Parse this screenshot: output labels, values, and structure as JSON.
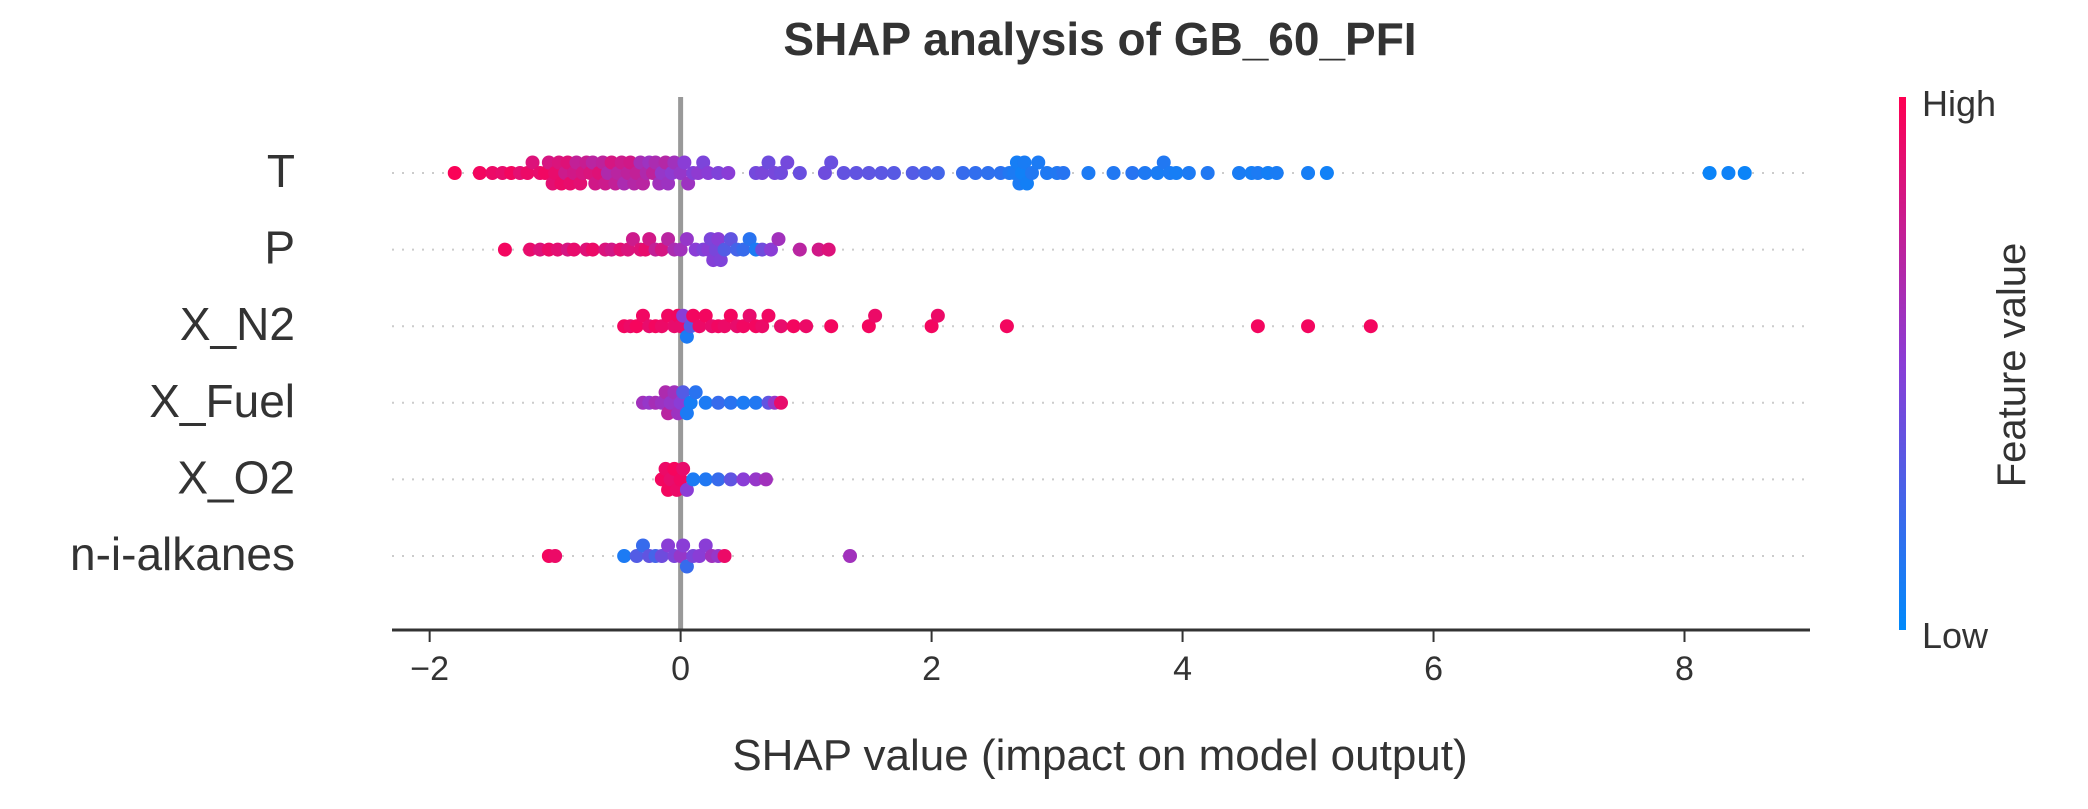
{
  "chart_data": {
    "type": "scatter",
    "title": "SHAP analysis of GB_60_PFI",
    "xlabel": "SHAP value (impact on model output)",
    "xlim": [
      -2.3,
      9.0
    ],
    "xticks": [
      -2,
      0,
      2,
      4,
      6,
      8
    ],
    "xtick_labels": [
      "−2",
      "0",
      "2",
      "4",
      "6",
      "8"
    ],
    "features": [
      "T",
      "P",
      "X_N2",
      "X_Fuel",
      "X_O2",
      "n-i-alkanes"
    ],
    "colorbar": {
      "label": "Feature value",
      "high_label": "High",
      "low_label": "Low",
      "high_color": "#ff0052",
      "mid_color": "#8a3dd6",
      "low_color": "#008afb"
    },
    "series": [
      {
        "feature": "T",
        "points": [
          {
            "x": -1.8,
            "f": 0.98
          },
          {
            "x": -1.6,
            "f": 0.95
          },
          {
            "x": -1.5,
            "f": 0.92
          },
          {
            "x": -1.42,
            "f": 0.9
          },
          {
            "x": -1.35,
            "f": 0.95
          },
          {
            "x": -1.28,
            "f": 0.88
          },
          {
            "x": -1.22,
            "f": 0.92
          },
          {
            "x": -1.18,
            "f": 0.85
          },
          {
            "x": -1.12,
            "f": 0.9
          },
          {
            "x": -1.08,
            "f": 0.94
          },
          {
            "x": -1.05,
            "f": 0.82
          },
          {
            "x": -1.02,
            "f": 0.88
          },
          {
            "x": -1.0,
            "f": 0.9
          },
          {
            "x": -0.97,
            "f": 0.84
          },
          {
            "x": -0.95,
            "f": 0.92
          },
          {
            "x": -0.92,
            "f": 0.78
          },
          {
            "x": -0.9,
            "f": 0.86
          },
          {
            "x": -0.88,
            "f": 0.9
          },
          {
            "x": -0.85,
            "f": 0.8
          },
          {
            "x": -0.83,
            "f": 0.74
          },
          {
            "x": -0.8,
            "f": 0.88
          },
          {
            "x": -0.78,
            "f": 0.82
          },
          {
            "x": -0.75,
            "f": 0.76
          },
          {
            "x": -0.72,
            "f": 0.84
          },
          {
            "x": -0.7,
            "f": 0.7
          },
          {
            "x": -0.68,
            "f": 0.8
          },
          {
            "x": -0.65,
            "f": 0.86
          },
          {
            "x": -0.62,
            "f": 0.72
          },
          {
            "x": -0.6,
            "f": 0.78
          },
          {
            "x": -0.58,
            "f": 0.66
          },
          {
            "x": -0.55,
            "f": 0.82
          },
          {
            "x": -0.52,
            "f": 0.74
          },
          {
            "x": -0.5,
            "f": 0.7
          },
          {
            "x": -0.47,
            "f": 0.78
          },
          {
            "x": -0.45,
            "f": 0.64
          },
          {
            "x": -0.42,
            "f": 0.72
          },
          {
            "x": -0.4,
            "f": 0.8
          },
          {
            "x": -0.37,
            "f": 0.68
          },
          {
            "x": -0.35,
            "f": 0.74
          },
          {
            "x": -0.32,
            "f": 0.62
          },
          {
            "x": -0.3,
            "f": 0.7
          },
          {
            "x": -0.27,
            "f": 0.66
          },
          {
            "x": -0.25,
            "f": 0.58
          },
          {
            "x": -0.22,
            "f": 0.72
          },
          {
            "x": -0.2,
            "f": 0.64
          },
          {
            "x": -0.17,
            "f": 0.6
          },
          {
            "x": -0.15,
            "f": 0.55
          },
          {
            "x": -0.12,
            "f": 0.68
          },
          {
            "x": -0.1,
            "f": 0.58
          },
          {
            "x": -0.07,
            "f": 0.52
          },
          {
            "x": -0.05,
            "f": 0.6
          },
          {
            "x": 0.0,
            "f": 0.55
          },
          {
            "x": 0.03,
            "f": 0.5
          },
          {
            "x": 0.06,
            "f": 0.58
          },
          {
            "x": 0.1,
            "f": 0.48
          },
          {
            "x": 0.14,
            "f": 0.52
          },
          {
            "x": 0.18,
            "f": 0.45
          },
          {
            "x": 0.22,
            "f": 0.5
          },
          {
            "x": 0.3,
            "f": 0.46
          },
          {
            "x": 0.38,
            "f": 0.5
          },
          {
            "x": 0.6,
            "f": 0.42
          },
          {
            "x": 0.65,
            "f": 0.44
          },
          {
            "x": 0.7,
            "f": 0.4
          },
          {
            "x": 0.75,
            "f": 0.43
          },
          {
            "x": 0.8,
            "f": 0.41
          },
          {
            "x": 0.85,
            "f": 0.42
          },
          {
            "x": 0.95,
            "f": 0.38
          },
          {
            "x": 1.15,
            "f": 0.4
          },
          {
            "x": 1.2,
            "f": 0.38
          },
          {
            "x": 1.3,
            "f": 0.36
          },
          {
            "x": 1.4,
            "f": 0.35
          },
          {
            "x": 1.5,
            "f": 0.34
          },
          {
            "x": 1.6,
            "f": 0.33
          },
          {
            "x": 1.7,
            "f": 0.32
          },
          {
            "x": 1.85,
            "f": 0.3
          },
          {
            "x": 1.95,
            "f": 0.26
          },
          {
            "x": 2.05,
            "f": 0.24
          },
          {
            "x": 2.25,
            "f": 0.2
          },
          {
            "x": 2.35,
            "f": 0.18
          },
          {
            "x": 2.45,
            "f": 0.17
          },
          {
            "x": 2.55,
            "f": 0.16
          },
          {
            "x": 2.62,
            "f": 0.12
          },
          {
            "x": 2.66,
            "f": 0.1
          },
          {
            "x": 2.68,
            "f": 0.08
          },
          {
            "x": 2.7,
            "f": 0.1
          },
          {
            "x": 2.72,
            "f": 0.06
          },
          {
            "x": 2.74,
            "f": 0.09
          },
          {
            "x": 2.76,
            "f": 0.07
          },
          {
            "x": 2.8,
            "f": 0.12
          },
          {
            "x": 2.85,
            "f": 0.1
          },
          {
            "x": 2.92,
            "f": 0.11
          },
          {
            "x": 3.0,
            "f": 0.12
          },
          {
            "x": 3.05,
            "f": 0.14
          },
          {
            "x": 3.25,
            "f": 0.1
          },
          {
            "x": 3.45,
            "f": 0.12
          },
          {
            "x": 3.6,
            "f": 0.14
          },
          {
            "x": 3.7,
            "f": 0.11
          },
          {
            "x": 3.8,
            "f": 0.09
          },
          {
            "x": 3.85,
            "f": 0.12
          },
          {
            "x": 3.9,
            "f": 0.1
          },
          {
            "x": 3.95,
            "f": 0.08
          },
          {
            "x": 4.05,
            "f": 0.1
          },
          {
            "x": 4.2,
            "f": 0.12
          },
          {
            "x": 4.45,
            "f": 0.09
          },
          {
            "x": 4.55,
            "f": 0.08
          },
          {
            "x": 4.6,
            "f": 0.1
          },
          {
            "x": 4.68,
            "f": 0.07
          },
          {
            "x": 4.75,
            "f": 0.09
          },
          {
            "x": 5.0,
            "f": 0.08
          },
          {
            "x": 5.15,
            "f": 0.06
          },
          {
            "x": 8.2,
            "f": 0.04
          },
          {
            "x": 8.35,
            "f": 0.05
          },
          {
            "x": 8.48,
            "f": 0.04
          }
        ]
      },
      {
        "feature": "P",
        "points": [
          {
            "x": -1.4,
            "f": 0.95
          },
          {
            "x": -1.2,
            "f": 0.9
          },
          {
            "x": -1.12,
            "f": 0.85
          },
          {
            "x": -1.05,
            "f": 0.92
          },
          {
            "x": -0.98,
            "f": 0.88
          },
          {
            "x": -0.9,
            "f": 0.82
          },
          {
            "x": -0.85,
            "f": 0.9
          },
          {
            "x": -0.75,
            "f": 0.86
          },
          {
            "x": -0.7,
            "f": 0.92
          },
          {
            "x": -0.6,
            "f": 0.84
          },
          {
            "x": -0.55,
            "f": 0.8
          },
          {
            "x": -0.48,
            "f": 0.88
          },
          {
            "x": -0.42,
            "f": 0.84
          },
          {
            "x": -0.38,
            "f": 0.78
          },
          {
            "x": -0.32,
            "f": 0.86
          },
          {
            "x": -0.28,
            "f": 0.9
          },
          {
            "x": -0.25,
            "f": 0.8
          },
          {
            "x": -0.2,
            "f": 0.74
          },
          {
            "x": -0.15,
            "f": 0.82
          },
          {
            "x": -0.1,
            "f": 0.7
          },
          {
            "x": -0.05,
            "f": 0.64
          },
          {
            "x": 0.0,
            "f": 0.6
          },
          {
            "x": 0.05,
            "f": 0.55
          },
          {
            "x": 0.12,
            "f": 0.5
          },
          {
            "x": 0.18,
            "f": 0.46
          },
          {
            "x": 0.22,
            "f": 0.5
          },
          {
            "x": 0.24,
            "f": 0.45
          },
          {
            "x": 0.26,
            "f": 0.48
          },
          {
            "x": 0.28,
            "f": 0.44
          },
          {
            "x": 0.3,
            "f": 0.5
          },
          {
            "x": 0.32,
            "f": 0.46
          },
          {
            "x": 0.35,
            "f": 0.3
          },
          {
            "x": 0.4,
            "f": 0.35
          },
          {
            "x": 0.45,
            "f": 0.25
          },
          {
            "x": 0.5,
            "f": 0.2
          },
          {
            "x": 0.55,
            "f": 0.15
          },
          {
            "x": 0.6,
            "f": 0.1
          },
          {
            "x": 0.65,
            "f": 0.4
          },
          {
            "x": 0.72,
            "f": 0.5
          },
          {
            "x": 0.78,
            "f": 0.6
          },
          {
            "x": 0.95,
            "f": 0.7
          },
          {
            "x": 1.1,
            "f": 0.8
          },
          {
            "x": 1.18,
            "f": 0.85
          }
        ]
      },
      {
        "feature": "X_N2",
        "points": [
          {
            "x": -0.45,
            "f": 0.95
          },
          {
            "x": -0.4,
            "f": 0.92
          },
          {
            "x": -0.35,
            "f": 0.96
          },
          {
            "x": -0.3,
            "f": 0.94
          },
          {
            "x": -0.25,
            "f": 0.9
          },
          {
            "x": -0.2,
            "f": 0.95
          },
          {
            "x": -0.15,
            "f": 0.92
          },
          {
            "x": -0.1,
            "f": 0.94
          },
          {
            "x": -0.05,
            "f": 0.9
          },
          {
            "x": -0.02,
            "f": 0.95
          },
          {
            "x": 0.0,
            "f": 0.9
          },
          {
            "x": 0.02,
            "f": 0.5
          },
          {
            "x": 0.05,
            "f": 0.1
          },
          {
            "x": 0.08,
            "f": 0.3
          },
          {
            "x": 0.1,
            "f": 0.95
          },
          {
            "x": 0.15,
            "f": 0.92
          },
          {
            "x": 0.2,
            "f": 0.95
          },
          {
            "x": 0.25,
            "f": 0.9
          },
          {
            "x": 0.3,
            "f": 0.94
          },
          {
            "x": 0.35,
            "f": 0.92
          },
          {
            "x": 0.4,
            "f": 0.95
          },
          {
            "x": 0.45,
            "f": 0.9
          },
          {
            "x": 0.5,
            "f": 0.94
          },
          {
            "x": 0.55,
            "f": 0.9
          },
          {
            "x": 0.6,
            "f": 0.95
          },
          {
            "x": 0.65,
            "f": 0.92
          },
          {
            "x": 0.7,
            "f": 0.94
          },
          {
            "x": 0.8,
            "f": 0.9
          },
          {
            "x": 0.9,
            "f": 0.95
          },
          {
            "x": 1.0,
            "f": 0.92
          },
          {
            "x": 1.2,
            "f": 0.95
          },
          {
            "x": 1.5,
            "f": 0.95
          },
          {
            "x": 1.55,
            "f": 0.92
          },
          {
            "x": 2.0,
            "f": 0.95
          },
          {
            "x": 2.05,
            "f": 0.92
          },
          {
            "x": 2.6,
            "f": 0.95
          },
          {
            "x": 4.6,
            "f": 0.95
          },
          {
            "x": 5.0,
            "f": 0.95
          },
          {
            "x": 5.5,
            "f": 0.95
          }
        ]
      },
      {
        "feature": "X_Fuel",
        "points": [
          {
            "x": -0.3,
            "f": 0.6
          },
          {
            "x": -0.25,
            "f": 0.55
          },
          {
            "x": -0.2,
            "f": 0.62
          },
          {
            "x": -0.15,
            "f": 0.58
          },
          {
            "x": -0.12,
            "f": 0.65
          },
          {
            "x": -0.1,
            "f": 0.7
          },
          {
            "x": -0.08,
            "f": 0.55
          },
          {
            "x": -0.05,
            "f": 0.6
          },
          {
            "x": -0.02,
            "f": 0.58
          },
          {
            "x": 0.0,
            "f": 0.5
          },
          {
            "x": 0.02,
            "f": 0.3
          },
          {
            "x": 0.05,
            "f": 0.1
          },
          {
            "x": 0.08,
            "f": 0.08
          },
          {
            "x": 0.12,
            "f": 0.15
          },
          {
            "x": 0.2,
            "f": 0.1
          },
          {
            "x": 0.3,
            "f": 0.2
          },
          {
            "x": 0.4,
            "f": 0.15
          },
          {
            "x": 0.5,
            "f": 0.1
          },
          {
            "x": 0.6,
            "f": 0.12
          },
          {
            "x": 0.7,
            "f": 0.35
          },
          {
            "x": 0.75,
            "f": 0.55
          },
          {
            "x": 0.8,
            "f": 0.9
          }
        ]
      },
      {
        "feature": "X_O2",
        "points": [
          {
            "x": -0.15,
            "f": 0.95
          },
          {
            "x": -0.12,
            "f": 0.92
          },
          {
            "x": -0.1,
            "f": 0.95
          },
          {
            "x": -0.08,
            "f": 0.9
          },
          {
            "x": -0.05,
            "f": 0.96
          },
          {
            "x": -0.03,
            "f": 0.92
          },
          {
            "x": 0.0,
            "f": 0.94
          },
          {
            "x": 0.02,
            "f": 0.9
          },
          {
            "x": 0.05,
            "f": 0.5
          },
          {
            "x": 0.1,
            "f": 0.1
          },
          {
            "x": 0.2,
            "f": 0.12
          },
          {
            "x": 0.3,
            "f": 0.2
          },
          {
            "x": 0.4,
            "f": 0.35
          },
          {
            "x": 0.5,
            "f": 0.5
          },
          {
            "x": 0.6,
            "f": 0.55
          },
          {
            "x": 0.68,
            "f": 0.6
          }
        ]
      },
      {
        "feature": "n-i-alkanes",
        "points": [
          {
            "x": -1.05,
            "f": 0.95
          },
          {
            "x": -1.0,
            "f": 0.92
          },
          {
            "x": -0.45,
            "f": 0.1
          },
          {
            "x": -0.35,
            "f": 0.3
          },
          {
            "x": -0.3,
            "f": 0.2
          },
          {
            "x": -0.25,
            "f": 0.35
          },
          {
            "x": -0.2,
            "f": 0.25
          },
          {
            "x": -0.15,
            "f": 0.4
          },
          {
            "x": -0.1,
            "f": 0.5
          },
          {
            "x": -0.05,
            "f": 0.45
          },
          {
            "x": 0.0,
            "f": 0.55
          },
          {
            "x": 0.02,
            "f": 0.5
          },
          {
            "x": 0.05,
            "f": 0.2
          },
          {
            "x": 0.1,
            "f": 0.45
          },
          {
            "x": 0.15,
            "f": 0.5
          },
          {
            "x": 0.2,
            "f": 0.5
          },
          {
            "x": 0.25,
            "f": 0.6
          },
          {
            "x": 0.3,
            "f": 0.55
          },
          {
            "x": 0.35,
            "f": 0.92
          },
          {
            "x": 1.35,
            "f": 0.6
          }
        ]
      }
    ],
    "grid": false,
    "legend": "right"
  }
}
